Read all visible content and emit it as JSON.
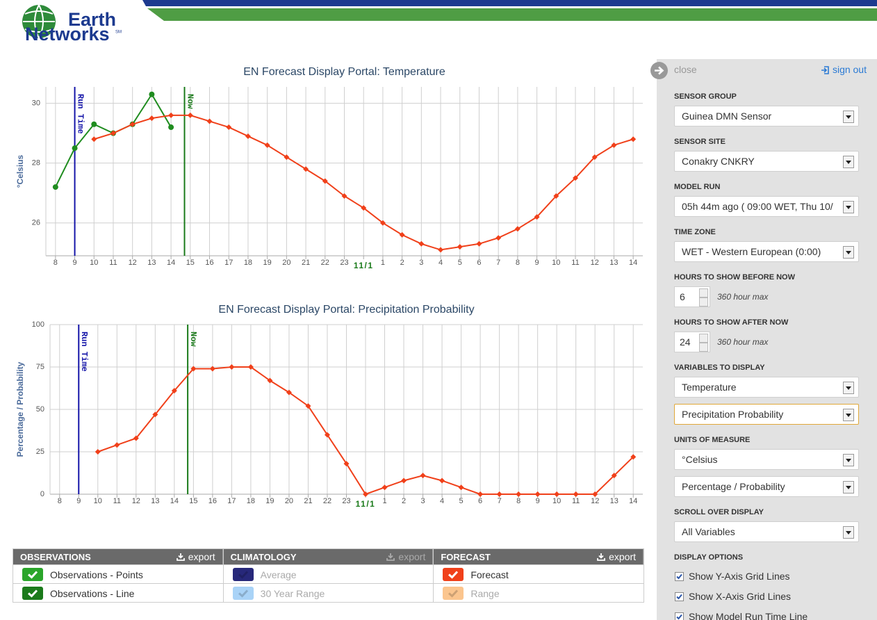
{
  "header": {
    "logo": [
      "Earth",
      "Networks"
    ],
    "logo_mark": "SM"
  },
  "chart_data": [
    {
      "type": "line",
      "title": "EN Forecast Display Portal: Temperature",
      "y_label": "°Celsius",
      "x": [
        8,
        9,
        10,
        11,
        12,
        13,
        14,
        15,
        16,
        17,
        18,
        19,
        20,
        21,
        22,
        23,
        24,
        25,
        26,
        27,
        28,
        29,
        30,
        31,
        32,
        33,
        34,
        35,
        36,
        37,
        38
      ],
      "xlim": [
        7.5,
        38.5
      ],
      "xticks": [
        8,
        9,
        10,
        11,
        12,
        13,
        14,
        15,
        16,
        17,
        18,
        19,
        20,
        21,
        22,
        23,
        {
          "value": 24,
          "label": "11/1"
        },
        {
          "value": 25,
          "label": "1"
        },
        {
          "value": 26,
          "label": "2"
        },
        {
          "value": 27,
          "label": "3"
        },
        {
          "value": 28,
          "label": "4"
        },
        {
          "value": 29,
          "label": "5"
        },
        {
          "value": 30,
          "label": "6"
        },
        {
          "value": 31,
          "label": "7"
        },
        {
          "value": 32,
          "label": "8"
        },
        {
          "value": 33,
          "label": "9"
        },
        {
          "value": 34,
          "label": "10"
        },
        {
          "value": 35,
          "label": "11"
        },
        {
          "value": 36,
          "label": "12"
        },
        {
          "value": 37,
          "label": "13"
        },
        {
          "value": 38,
          "label": "14"
        }
      ],
      "ylim": [
        24.9,
        30.55
      ],
      "yticks": [
        26,
        28,
        30
      ],
      "grid": true,
      "markers": [
        {
          "label": "Run Time",
          "x": 9,
          "color": "#1414a8"
        },
        {
          "label": "Now",
          "x": 14.7,
          "color": "#1a7a1a"
        }
      ],
      "series": [
        {
          "color": "#1f8c1f",
          "marker": "circle",
          "values": [
            27.2,
            28.5,
            29.3,
            29.0,
            29.3,
            30.3,
            29.2,
            null,
            null,
            null,
            null,
            null,
            null,
            null,
            null,
            null,
            null,
            null,
            null,
            null,
            null,
            null,
            null,
            null,
            null,
            null,
            null,
            null,
            null,
            null,
            null
          ]
        },
        {
          "color": "#f0401a",
          "marker": "diamond",
          "values": [
            null,
            null,
            28.8,
            29.0,
            29.3,
            29.5,
            29.6,
            29.6,
            29.4,
            29.2,
            28.9,
            28.6,
            28.2,
            27.8,
            27.4,
            26.9,
            26.5,
            26.0,
            25.6,
            25.3,
            25.1,
            25.2,
            25.3,
            25.5,
            25.8,
            26.2,
            26.9,
            27.5,
            28.2,
            28.6,
            28.8
          ]
        }
      ]
    },
    {
      "type": "line",
      "title": "EN Forecast Display Portal: Precipitation Probability",
      "y_label": "Percentage / Probability",
      "x": [
        8,
        9,
        10,
        11,
        12,
        13,
        14,
        15,
        16,
        17,
        18,
        19,
        20,
        21,
        22,
        23,
        24,
        25,
        26,
        27,
        28,
        29,
        30,
        31,
        32,
        33,
        34,
        35,
        36,
        37,
        38
      ],
      "xlim": [
        7.5,
        38.5
      ],
      "xticks": [
        8,
        9,
        10,
        11,
        12,
        13,
        14,
        15,
        16,
        17,
        18,
        19,
        20,
        21,
        22,
        23,
        {
          "value": 24,
          "label": "11/1"
        },
        {
          "value": 25,
          "label": "1"
        },
        {
          "value": 26,
          "label": "2"
        },
        {
          "value": 27,
          "label": "3"
        },
        {
          "value": 28,
          "label": "4"
        },
        {
          "value": 29,
          "label": "5"
        },
        {
          "value": 30,
          "label": "6"
        },
        {
          "value": 31,
          "label": "7"
        },
        {
          "value": 32,
          "label": "8"
        },
        {
          "value": 33,
          "label": "9"
        },
        {
          "value": 34,
          "label": "10"
        },
        {
          "value": 35,
          "label": "11"
        },
        {
          "value": 36,
          "label": "12"
        },
        {
          "value": 37,
          "label": "13"
        },
        {
          "value": 38,
          "label": "14"
        }
      ],
      "ylim": [
        0,
        100
      ],
      "yticks": [
        0,
        25,
        50,
        75,
        100
      ],
      "grid": true,
      "markers": [
        {
          "label": "Run Time",
          "x": 9,
          "color": "#1414a8"
        },
        {
          "label": "Now",
          "x": 14.7,
          "color": "#1a7a1a"
        }
      ],
      "series": [
        {
          "color": "#f0401a",
          "marker": "diamond",
          "values": [
            null,
            null,
            25,
            29,
            33,
            47,
            61,
            74,
            74,
            75,
            75,
            67,
            60,
            52,
            35,
            18,
            0,
            4,
            8,
            11,
            8,
            4,
            0,
            0,
            0,
            0,
            0,
            0,
            0,
            11,
            22
          ]
        }
      ]
    }
  ],
  "panel": {
    "close": "close",
    "sign_out": "sign out",
    "sections": [
      {
        "label": "SENSOR GROUP",
        "selects": [
          "Guinea DMN Sensor"
        ]
      },
      {
        "label": "SENSOR SITE",
        "selects": [
          "Conakry CNKRY"
        ]
      },
      {
        "label": "MODEL RUN",
        "selects": [
          "05h 44m ago ( 09:00 WET, Thu 10/"
        ]
      },
      {
        "label": "TIME ZONE",
        "selects": [
          "WET - Western European (0:00)"
        ]
      },
      {
        "label": "HOURS TO SHOW BEFORE NOW",
        "spinner": {
          "value": 6,
          "note": "360 hour max"
        }
      },
      {
        "label": "HOURS TO SHOW AFTER NOW",
        "spinner": {
          "value": 24,
          "note": "360 hour max"
        }
      },
      {
        "label": "VARIABLES TO DISPLAY",
        "selects": [
          "Temperature",
          "Precipitation Probability"
        ]
      },
      {
        "label": "UNITS OF MEASURE",
        "selects": [
          "°Celsius",
          "Percentage / Probability"
        ]
      },
      {
        "label": "SCROLL OVER DISPLAY",
        "selects": [
          "All Variables"
        ]
      },
      {
        "label": "DISPLAY OPTIONS",
        "checkboxes": [
          "Show Y-Axis Grid Lines",
          "Show X-Axis Grid Lines",
          "Show Model Run Time Line"
        ]
      }
    ]
  },
  "legend": {
    "columns": [
      {
        "title": "OBSERVATIONS",
        "action": "export",
        "enabled": true,
        "items": [
          {
            "label": "Observations - Points",
            "color": "#2aa52a",
            "enabled": true
          },
          {
            "label": "Observations - Line",
            "color": "#1b7a1b",
            "enabled": true
          }
        ]
      },
      {
        "title": "CLIMATOLOGY",
        "action": "export",
        "enabled": false,
        "items": [
          {
            "label": "Average",
            "color": "#27287a",
            "enabled": false
          },
          {
            "label": "30 Year Range",
            "color": "#a9d3f7",
            "enabled": false
          }
        ]
      },
      {
        "title": "FORECAST",
        "action": "export",
        "enabled": true,
        "items": [
          {
            "label": "Forecast",
            "color": "#f0401a",
            "enabled": true
          },
          {
            "label": "Range",
            "color": "#fbc58e",
            "enabled": false
          }
        ]
      }
    ]
  }
}
